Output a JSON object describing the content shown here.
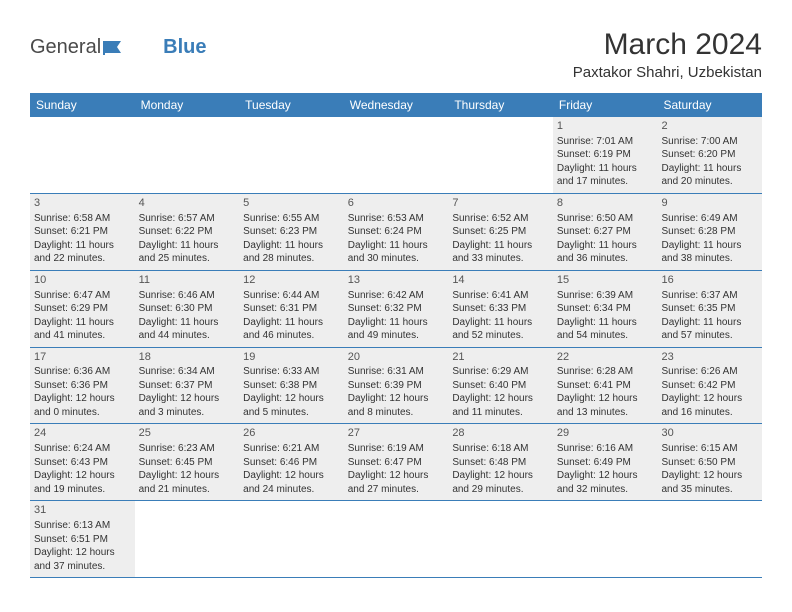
{
  "logo": {
    "general": "General",
    "blue": "Blue"
  },
  "title": "March 2024",
  "location": "Paxtakor Shahri, Uzbekistan",
  "day_names": [
    "Sunday",
    "Monday",
    "Tuesday",
    "Wednesday",
    "Thursday",
    "Friday",
    "Saturday"
  ],
  "colors": {
    "header_bg": "#3a7db8",
    "header_text": "#ffffff",
    "shaded_bg": "#eeeeee",
    "border": "#3a7db8",
    "text": "#333333",
    "logo_gray": "#4a4a4a",
    "logo_blue": "#3a7db8"
  },
  "typography": {
    "title_fontsize": 30,
    "location_fontsize": 15,
    "dayheader_fontsize": 12,
    "cell_fontsize": 10,
    "daynum_fontsize": 11
  },
  "weeks": [
    [
      {
        "n": "",
        "sr": "",
        "ss": "",
        "dl": ""
      },
      {
        "n": "",
        "sr": "",
        "ss": "",
        "dl": ""
      },
      {
        "n": "",
        "sr": "",
        "ss": "",
        "dl": ""
      },
      {
        "n": "",
        "sr": "",
        "ss": "",
        "dl": ""
      },
      {
        "n": "",
        "sr": "",
        "ss": "",
        "dl": ""
      },
      {
        "n": "1",
        "sr": "Sunrise: 7:01 AM",
        "ss": "Sunset: 6:19 PM",
        "dl": "Daylight: 11 hours and 17 minutes."
      },
      {
        "n": "2",
        "sr": "Sunrise: 7:00 AM",
        "ss": "Sunset: 6:20 PM",
        "dl": "Daylight: 11 hours and 20 minutes."
      }
    ],
    [
      {
        "n": "3",
        "sr": "Sunrise: 6:58 AM",
        "ss": "Sunset: 6:21 PM",
        "dl": "Daylight: 11 hours and 22 minutes."
      },
      {
        "n": "4",
        "sr": "Sunrise: 6:57 AM",
        "ss": "Sunset: 6:22 PM",
        "dl": "Daylight: 11 hours and 25 minutes."
      },
      {
        "n": "5",
        "sr": "Sunrise: 6:55 AM",
        "ss": "Sunset: 6:23 PM",
        "dl": "Daylight: 11 hours and 28 minutes."
      },
      {
        "n": "6",
        "sr": "Sunrise: 6:53 AM",
        "ss": "Sunset: 6:24 PM",
        "dl": "Daylight: 11 hours and 30 minutes."
      },
      {
        "n": "7",
        "sr": "Sunrise: 6:52 AM",
        "ss": "Sunset: 6:25 PM",
        "dl": "Daylight: 11 hours and 33 minutes."
      },
      {
        "n": "8",
        "sr": "Sunrise: 6:50 AM",
        "ss": "Sunset: 6:27 PM",
        "dl": "Daylight: 11 hours and 36 minutes."
      },
      {
        "n": "9",
        "sr": "Sunrise: 6:49 AM",
        "ss": "Sunset: 6:28 PM",
        "dl": "Daylight: 11 hours and 38 minutes."
      }
    ],
    [
      {
        "n": "10",
        "sr": "Sunrise: 6:47 AM",
        "ss": "Sunset: 6:29 PM",
        "dl": "Daylight: 11 hours and 41 minutes."
      },
      {
        "n": "11",
        "sr": "Sunrise: 6:46 AM",
        "ss": "Sunset: 6:30 PM",
        "dl": "Daylight: 11 hours and 44 minutes."
      },
      {
        "n": "12",
        "sr": "Sunrise: 6:44 AM",
        "ss": "Sunset: 6:31 PM",
        "dl": "Daylight: 11 hours and 46 minutes."
      },
      {
        "n": "13",
        "sr": "Sunrise: 6:42 AM",
        "ss": "Sunset: 6:32 PM",
        "dl": "Daylight: 11 hours and 49 minutes."
      },
      {
        "n": "14",
        "sr": "Sunrise: 6:41 AM",
        "ss": "Sunset: 6:33 PM",
        "dl": "Daylight: 11 hours and 52 minutes."
      },
      {
        "n": "15",
        "sr": "Sunrise: 6:39 AM",
        "ss": "Sunset: 6:34 PM",
        "dl": "Daylight: 11 hours and 54 minutes."
      },
      {
        "n": "16",
        "sr": "Sunrise: 6:37 AM",
        "ss": "Sunset: 6:35 PM",
        "dl": "Daylight: 11 hours and 57 minutes."
      }
    ],
    [
      {
        "n": "17",
        "sr": "Sunrise: 6:36 AM",
        "ss": "Sunset: 6:36 PM",
        "dl": "Daylight: 12 hours and 0 minutes."
      },
      {
        "n": "18",
        "sr": "Sunrise: 6:34 AM",
        "ss": "Sunset: 6:37 PM",
        "dl": "Daylight: 12 hours and 3 minutes."
      },
      {
        "n": "19",
        "sr": "Sunrise: 6:33 AM",
        "ss": "Sunset: 6:38 PM",
        "dl": "Daylight: 12 hours and 5 minutes."
      },
      {
        "n": "20",
        "sr": "Sunrise: 6:31 AM",
        "ss": "Sunset: 6:39 PM",
        "dl": "Daylight: 12 hours and 8 minutes."
      },
      {
        "n": "21",
        "sr": "Sunrise: 6:29 AM",
        "ss": "Sunset: 6:40 PM",
        "dl": "Daylight: 12 hours and 11 minutes."
      },
      {
        "n": "22",
        "sr": "Sunrise: 6:28 AM",
        "ss": "Sunset: 6:41 PM",
        "dl": "Daylight: 12 hours and 13 minutes."
      },
      {
        "n": "23",
        "sr": "Sunrise: 6:26 AM",
        "ss": "Sunset: 6:42 PM",
        "dl": "Daylight: 12 hours and 16 minutes."
      }
    ],
    [
      {
        "n": "24",
        "sr": "Sunrise: 6:24 AM",
        "ss": "Sunset: 6:43 PM",
        "dl": "Daylight: 12 hours and 19 minutes."
      },
      {
        "n": "25",
        "sr": "Sunrise: 6:23 AM",
        "ss": "Sunset: 6:45 PM",
        "dl": "Daylight: 12 hours and 21 minutes."
      },
      {
        "n": "26",
        "sr": "Sunrise: 6:21 AM",
        "ss": "Sunset: 6:46 PM",
        "dl": "Daylight: 12 hours and 24 minutes."
      },
      {
        "n": "27",
        "sr": "Sunrise: 6:19 AM",
        "ss": "Sunset: 6:47 PM",
        "dl": "Daylight: 12 hours and 27 minutes."
      },
      {
        "n": "28",
        "sr": "Sunrise: 6:18 AM",
        "ss": "Sunset: 6:48 PM",
        "dl": "Daylight: 12 hours and 29 minutes."
      },
      {
        "n": "29",
        "sr": "Sunrise: 6:16 AM",
        "ss": "Sunset: 6:49 PM",
        "dl": "Daylight: 12 hours and 32 minutes."
      },
      {
        "n": "30",
        "sr": "Sunrise: 6:15 AM",
        "ss": "Sunset: 6:50 PM",
        "dl": "Daylight: 12 hours and 35 minutes."
      }
    ],
    [
      {
        "n": "31",
        "sr": "Sunrise: 6:13 AM",
        "ss": "Sunset: 6:51 PM",
        "dl": "Daylight: 12 hours and 37 minutes."
      },
      {
        "n": "",
        "sr": "",
        "ss": "",
        "dl": ""
      },
      {
        "n": "",
        "sr": "",
        "ss": "",
        "dl": ""
      },
      {
        "n": "",
        "sr": "",
        "ss": "",
        "dl": ""
      },
      {
        "n": "",
        "sr": "",
        "ss": "",
        "dl": ""
      },
      {
        "n": "",
        "sr": "",
        "ss": "",
        "dl": ""
      },
      {
        "n": "",
        "sr": "",
        "ss": "",
        "dl": ""
      }
    ]
  ]
}
